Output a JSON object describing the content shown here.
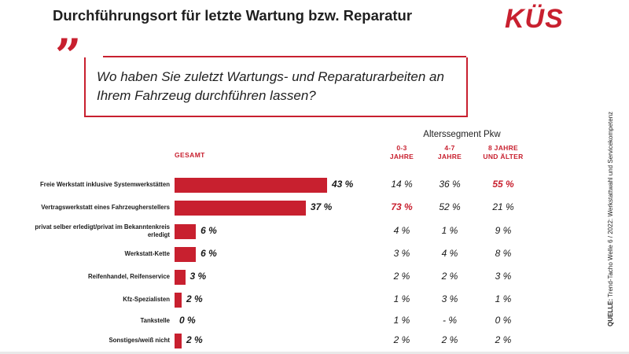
{
  "header": {
    "title": "Durchführungsort für letzte Wartung bzw. Reparatur",
    "logo": "KÜS"
  },
  "question": {
    "quote_glyph": "”",
    "text": "Wo haben Sie zuletzt Wartungs- und Reparaturarbeiten an Ihrem Fahrzeug durchführen lassen?"
  },
  "segment_title": "Alterssegment Pkw",
  "gesamt_label": "GESAMT",
  "column_headers": [
    "0-3\nJAHRE",
    "4-7\nJAHRE",
    "8 JAHRE\nUND ÄLTER"
  ],
  "source": {
    "label": "QUELLE:",
    "text": "Trend-Tacho Welle 6 / 2022: Werkstattwahl und Servicekompetenz"
  },
  "colors": {
    "accent": "#c8202f",
    "text": "#1a1a1a"
  },
  "chart_data": {
    "type": "bar",
    "orientation": "horizontal",
    "categories": [
      "Freie Werkstatt inklusive Systemwerkstätten",
      "Vertragswerkstatt eines Fahrzeugherstellers",
      "privat selber erledigt/privat im Bekanntenkreis erledigt",
      "Werkstatt-Kette",
      "Reifenhandel, Reifenservice",
      "Kfz-Spezialisten",
      "Tankstelle",
      "Sonstiges/weiß nicht"
    ],
    "values": [
      43,
      37,
      6,
      6,
      3,
      2,
      0,
      2
    ],
    "value_labels": [
      "43 %",
      "37 %",
      "6 %",
      "6 %",
      "3 %",
      "2 %",
      "0 %",
      "2 %"
    ],
    "xlim": [
      0,
      100
    ],
    "segments": [
      {
        "name": "0-3 JAHRE",
        "labels": [
          "14 %",
          "73 %",
          "4 %",
          "3 %",
          "2 %",
          "1 %",
          "1 %",
          "2 %"
        ],
        "highlight": [
          1
        ]
      },
      {
        "name": "4-7 JAHRE",
        "labels": [
          "36 %",
          "52 %",
          "1 %",
          "4 %",
          "2 %",
          "3 %",
          "- %",
          "2 %"
        ],
        "highlight": []
      },
      {
        "name": "8 JAHRE UND ÄLTER",
        "labels": [
          "55 %",
          "21 %",
          "9 %",
          "8 %",
          "3 %",
          "1 %",
          "0 %",
          "2 %"
        ],
        "highlight": [
          0
        ]
      }
    ]
  }
}
